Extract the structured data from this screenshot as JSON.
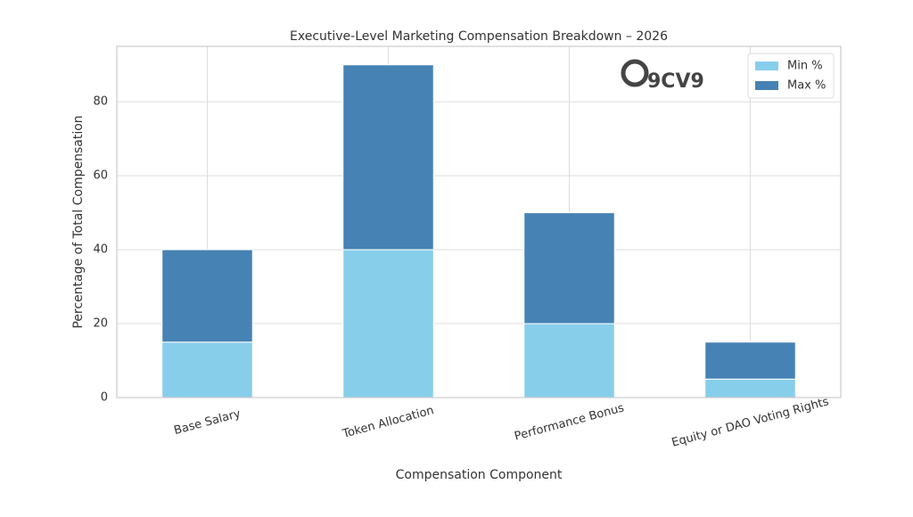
{
  "chart_data": {
    "type": "stacked-bar",
    "title": "Executive-Level Marketing Compensation Breakdown – 2026",
    "x_label": "Compensation Component",
    "y_label": "Percentage of Total Compensation",
    "watermark": "9CV9",
    "categories": [
      "Base Salary",
      "Token Allocation",
      "Performance Bonus",
      "Equity or DAO Voting Rights"
    ],
    "series": [
      {
        "name": "Min %",
        "color": "#87ceeb",
        "values": [
          15,
          40,
          20,
          5
        ]
      },
      {
        "name": "Max %",
        "color": "#4682b4",
        "values": [
          25,
          50,
          30,
          10
        ]
      }
    ],
    "ylim": [
      0,
      95
    ],
    "yticks": [
      0,
      20,
      40,
      60,
      80
    ],
    "grid": true,
    "legend": "upper right"
  }
}
